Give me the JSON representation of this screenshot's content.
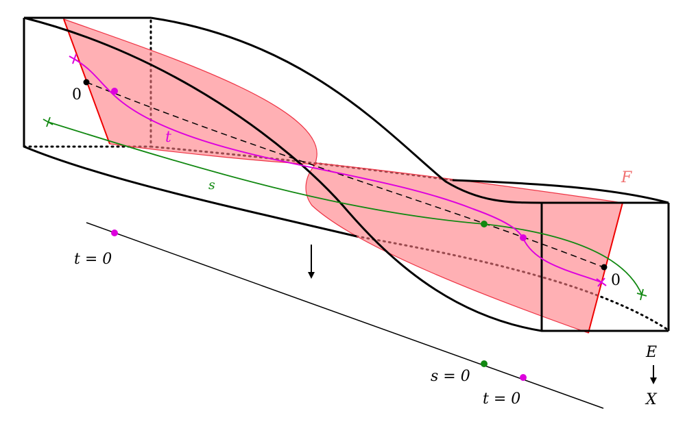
{
  "labels": {
    "fiber_F": "F",
    "curve_t": "t",
    "curve_s": "s",
    "zero_left": "0",
    "zero_right": "0",
    "base_t0_left": "t = 0",
    "base_s0": "s = 0",
    "base_t0_right": "t = 0",
    "total_space": "E",
    "base_space": "X"
  },
  "colors": {
    "fiber_fill": "#ff7b82",
    "fiber_edge": "#ee0000",
    "curve_t": "#dd00dd",
    "curve_s": "#118811",
    "point_black": "#000000"
  },
  "icons": {
    "projection_arrow": "down-arrow-icon",
    "legend_arrow": "down-arrow-icon"
  }
}
